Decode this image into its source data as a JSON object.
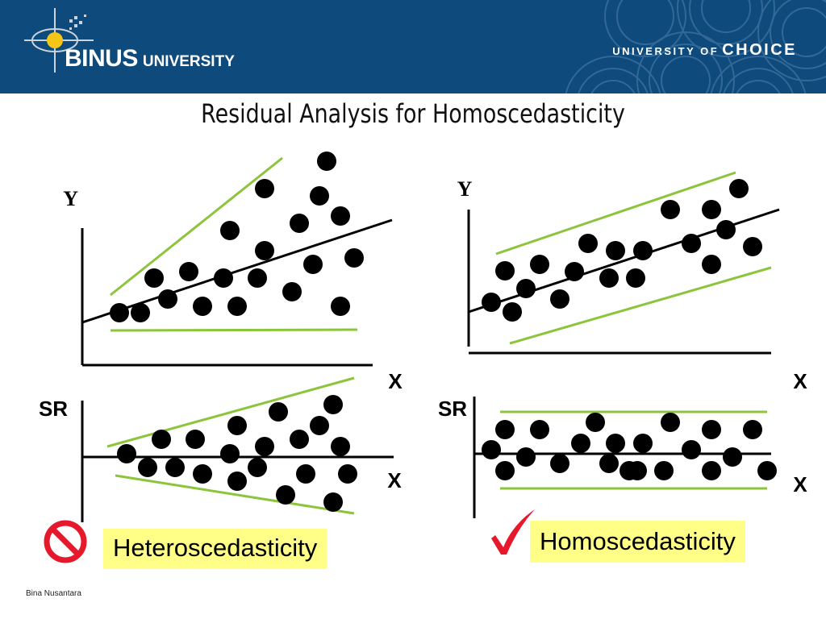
{
  "header": {
    "brand_name": "BINUS",
    "brand_suffix": "UNIVERSITY",
    "tagline_prefix": "UNIVERSITY OF",
    "tagline_emphasis": "CHOICE",
    "background_color": "#0e4a7c"
  },
  "slide_title": "Residual Analysis for Homoscedasticity",
  "panels": {
    "top_left": {
      "y_label": "Y",
      "x_label": "X"
    },
    "top_right": {
      "y_label": "Y",
      "x_label": "X"
    },
    "bottom_left": {
      "y_label": "SR",
      "x_label": "X"
    },
    "bottom_right": {
      "y_label": "SR",
      "x_label": "X"
    }
  },
  "verdicts": {
    "heteroscedasticity": {
      "label": "Heteroscedasticity",
      "icon": "no-sign-icon"
    },
    "homoscedasticity": {
      "label": "Homoscedasticity",
      "icon": "checkmark-icon"
    }
  },
  "colors": {
    "band_lines": "#8cc43c",
    "label_background": "#ffff88",
    "no_sign": "#e8182c",
    "checkmark": "#e8182c"
  },
  "footer": "Bina Nusantara"
}
